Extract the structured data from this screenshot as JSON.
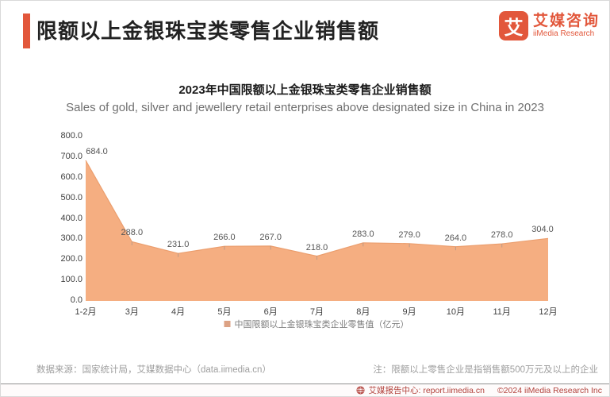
{
  "header": {
    "title": "限额以上金银珠宝类零售企业销售额",
    "logo": {
      "mark": "艾",
      "name_cn": "艾媒咨询",
      "name_en": "iiMedia Research"
    }
  },
  "chart": {
    "title_cn": "2023年中国限额以上金银珠宝类零售企业销售额",
    "title_en": "Sales of gold, silver and jewellery retail enterprises above designated size in China in 2023",
    "legend_label": "中国限额以上金银珠宝类企业零售值（亿元）"
  },
  "chart_data": {
    "type": "area",
    "title": "2023年中国限额以上金银珠宝类零售企业销售额",
    "subtitle": "Sales of gold, silver and jewellery retail enterprises above designated size in China in 2023",
    "categories": [
      "1-2月",
      "3月",
      "4月",
      "5月",
      "6月",
      "7月",
      "8月",
      "9月",
      "10月",
      "11月",
      "12月"
    ],
    "series": [
      {
        "name": "中国限额以上金银珠宝类企业零售值（亿元）",
        "values": [
          684.0,
          288.0,
          231.0,
          266.0,
          267.0,
          218.0,
          283.0,
          279.0,
          264.0,
          278.0,
          304.0
        ]
      }
    ],
    "ylim": [
      0,
      800
    ],
    "ytick_step": 100,
    "ytick_format": "one_decimal",
    "grid": false,
    "legend_position": "bottom",
    "colors": {
      "area_fill": "#f5ae81",
      "area_stroke": "#eb9e6e",
      "legend_swatch": "#dca284",
      "point_tick": "#8c8c8c"
    }
  },
  "footnotes": {
    "source": "数据来源：国家统计局，艾媒数据中心（data.iimedia.cn）",
    "note": "注：限额以上零售企业是指销售额500万元及以上的企业"
  },
  "footer": {
    "report_center": "艾媒报告中心: report.iimedia.cn",
    "copyright": "©2024  iiMedia Research  Inc"
  },
  "icons": {
    "footer": "globe-icon"
  },
  "colors": {
    "accent": "#e2573b",
    "title_text": "#222222",
    "subtitle_text": "#6f6f6f",
    "note_text": "#9e9e9e",
    "footer_text": "#b2423c",
    "footer_bg": "#fefbfb"
  }
}
